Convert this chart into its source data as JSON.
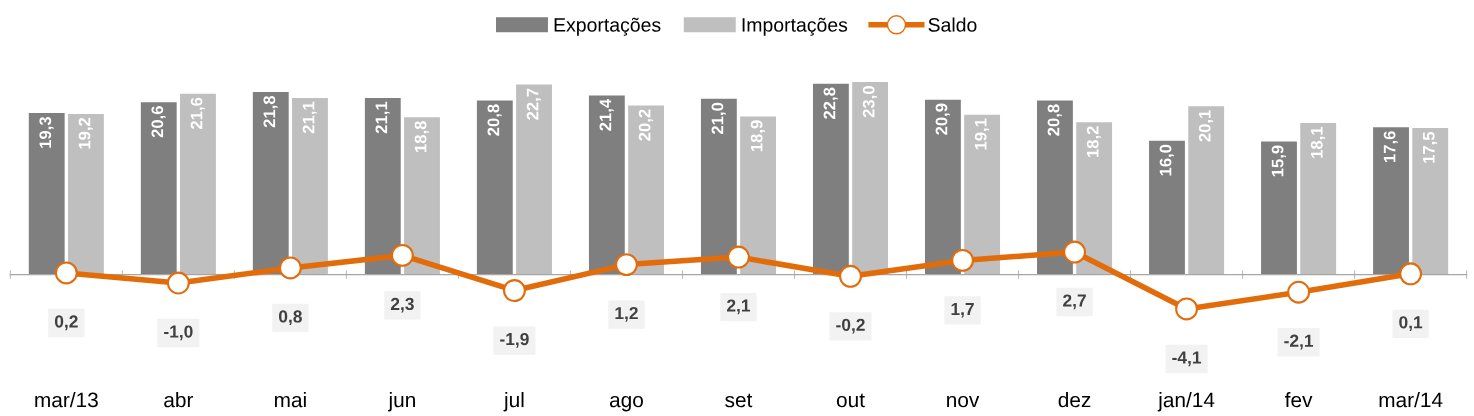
{
  "chart_data": {
    "type": "bar",
    "categories": [
      "mar/13",
      "abr",
      "mai",
      "jun",
      "jul",
      "ago",
      "set",
      "out",
      "nov",
      "dez",
      "jan/14",
      "fev",
      "mar/14"
    ],
    "series": [
      {
        "name": "Exportações",
        "color": "#7f7f7f",
        "values": [
          19.3,
          20.6,
          21.8,
          21.1,
          20.8,
          21.4,
          21.0,
          22.8,
          20.9,
          20.8,
          16.0,
          15.9,
          17.6
        ],
        "value_labels": [
          "19,3",
          "20,6",
          "21,8",
          "21,1",
          "20,8",
          "21,4",
          "21,0",
          "22,8",
          "20,9",
          "20,8",
          "16,0",
          "15,9",
          "17,6"
        ]
      },
      {
        "name": "Importações",
        "color": "#bfbfbf",
        "values": [
          19.2,
          21.6,
          21.1,
          18.8,
          22.7,
          20.2,
          18.9,
          23.0,
          19.1,
          18.2,
          20.1,
          18.1,
          17.5
        ],
        "value_labels": [
          "19,2",
          "21,6",
          "21,1",
          "18,8",
          "22,7",
          "20,2",
          "18,9",
          "23,0",
          "19,1",
          "18,2",
          "20,1",
          "18,1",
          "17,5"
        ]
      },
      {
        "name": "Saldo",
        "type": "line",
        "color": "#e36c0a",
        "marker": "circle",
        "values": [
          0.2,
          -1.0,
          0.8,
          2.3,
          -1.9,
          1.2,
          2.1,
          -0.2,
          1.7,
          2.7,
          -4.1,
          -2.1,
          0.1
        ],
        "value_labels": [
          "0,2",
          "-1,0",
          "0,8",
          "2,3",
          "-1,9",
          "1,2",
          "2,1",
          "-0,2",
          "1,7",
          "2,7",
          "-4,1",
          "-2,1",
          "0,1"
        ]
      }
    ],
    "legend": "top",
    "grid": false
  }
}
